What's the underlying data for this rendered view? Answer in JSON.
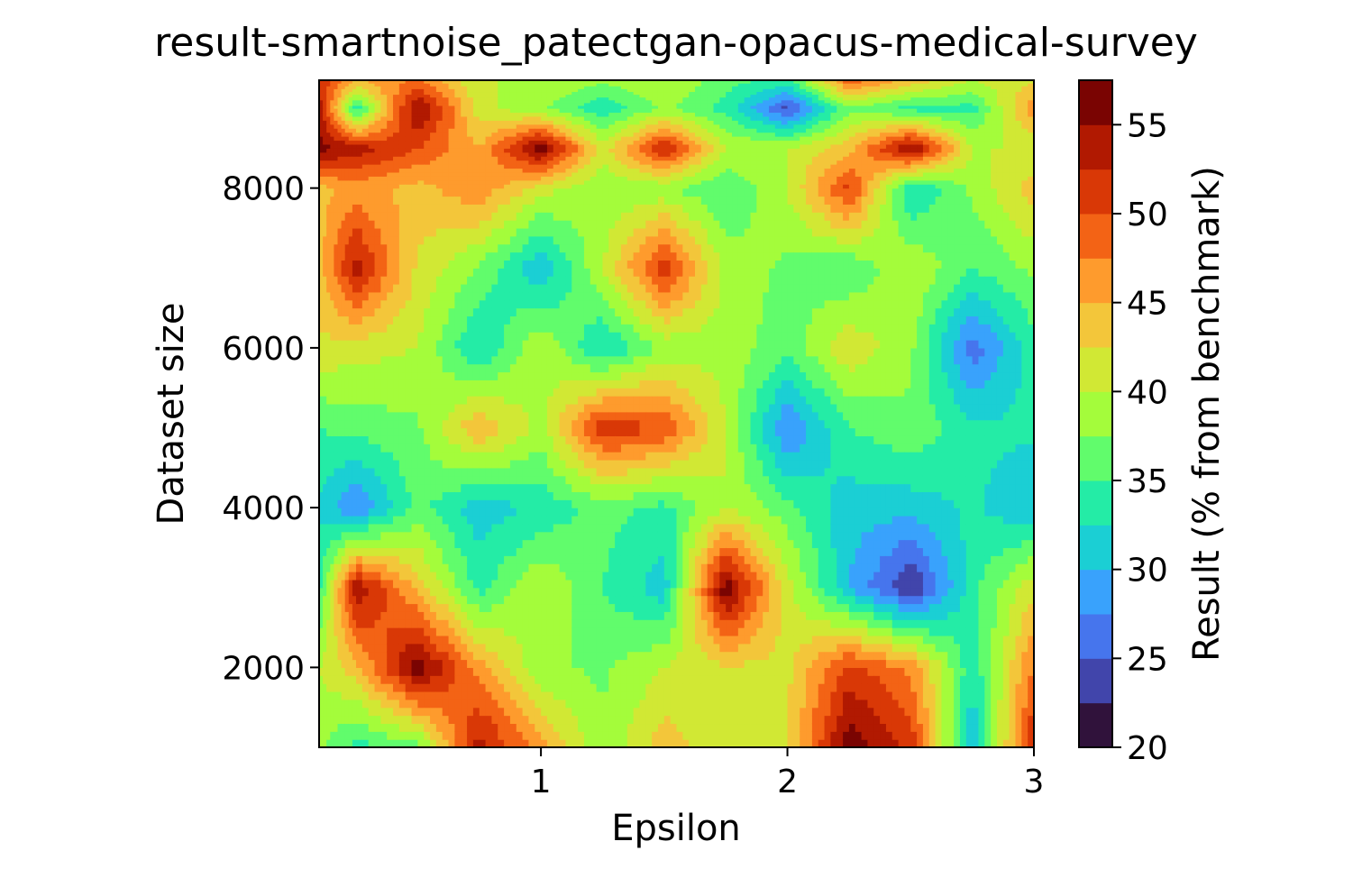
{
  "chart_data": {
    "type": "heatmap",
    "subtype": "filled-contour",
    "title": "result-smartnoise_patectgan-opacus-medical-survey",
    "xlabel": "Epsilon",
    "ylabel": "Dataset size",
    "colorbar_label": "Result (% from benchmark)",
    "colormap": "turbo",
    "xlim": [
      0.1,
      3.0
    ],
    "ylim": [
      1000,
      9350
    ],
    "x_ticks": [
      1,
      2,
      3
    ],
    "y_ticks": [
      2000,
      4000,
      6000,
      8000
    ],
    "levels": [
      20,
      22.5,
      25,
      27.5,
      30,
      32.5,
      35,
      37.5,
      40,
      42.5,
      45,
      47.5,
      50,
      52.5,
      55,
      57.5
    ],
    "colorbar_ticks": [
      20,
      25,
      30,
      35,
      40,
      45,
      50,
      55
    ],
    "level_colors": [
      "#30123b",
      "#4145ab",
      "#4675ed",
      "#39a2fc",
      "#1bcfd4",
      "#24eca6",
      "#61fc6c",
      "#a4fc3b",
      "#d1e834",
      "#f3c63a",
      "#fe9b2d",
      "#f36315",
      "#d93806",
      "#b11901",
      "#7a0402"
    ],
    "x": [
      0.1,
      0.25,
      0.5,
      0.75,
      1.0,
      1.25,
      1.5,
      1.75,
      2.0,
      2.25,
      2.5,
      2.75,
      3.0
    ],
    "y": [
      1000,
      2000,
      3000,
      4000,
      5000,
      6000,
      7000,
      8000,
      8500,
      9000,
      9350
    ],
    "z": [
      [
        38,
        34,
        36,
        54,
        46,
        38,
        44,
        40,
        42,
        57,
        52,
        30,
        53
      ],
      [
        40,
        44,
        57,
        46,
        38,
        37,
        40,
        42,
        42,
        51,
        47,
        33,
        48
      ],
      [
        34,
        55,
        44,
        34,
        40,
        35,
        31,
        57,
        41,
        30,
        22,
        34,
        42
      ],
      [
        32,
        27,
        36,
        31,
        33,
        36,
        34,
        40,
        36,
        31,
        31,
        33,
        30
      ],
      [
        35,
        36,
        37,
        45,
        39,
        52,
        50,
        40,
        27,
        35,
        37,
        33,
        33
      ],
      [
        42,
        41,
        40,
        32,
        40,
        32,
        38,
        39,
        36,
        42,
        38,
        26,
        34
      ],
      [
        44,
        54,
        42,
        37,
        30,
        40,
        52,
        39,
        37,
        35,
        40,
        35,
        38
      ],
      [
        44,
        46,
        44,
        47,
        41,
        38,
        38,
        35,
        40,
        51,
        32,
        38,
        44
      ],
      [
        56,
        54,
        50,
        45,
        57,
        41,
        53,
        40,
        40,
        44,
        56,
        40,
        40
      ],
      [
        54,
        33,
        56,
        41,
        38,
        33,
        38,
        34,
        24,
        37,
        34,
        34,
        47
      ],
      [
        52,
        45,
        48,
        40,
        40,
        38,
        40,
        36,
        34,
        49,
        44,
        40,
        42
      ]
    ]
  }
}
